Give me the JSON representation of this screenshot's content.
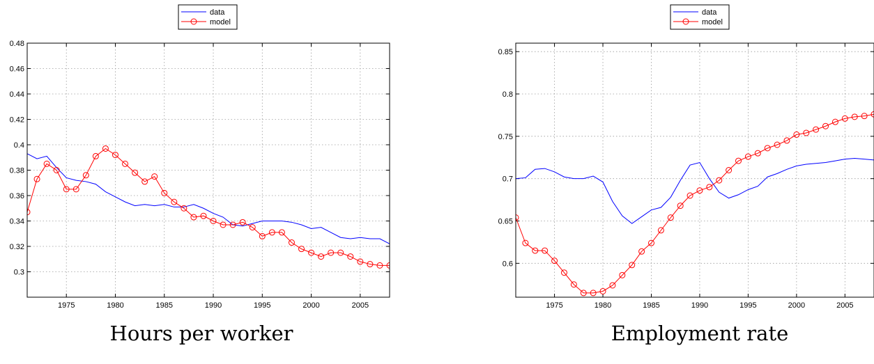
{
  "chart_data": [
    {
      "type": "line",
      "title": "",
      "caption": "Hours per worker",
      "xlabel": "",
      "ylabel": "",
      "xlim": [
        1971,
        2008
      ],
      "ylim": [
        0.28,
        0.48
      ],
      "xticks": [
        1975,
        1980,
        1985,
        1990,
        1995,
        2000,
        2005
      ],
      "xtick_labels": [
        "1975",
        "1980",
        "1985",
        "1990",
        "1995",
        "2000",
        "2005"
      ],
      "yticks": [
        0.3,
        0.32,
        0.34,
        0.36,
        0.38,
        0.4,
        0.42,
        0.44,
        0.46,
        0.48
      ],
      "ytick_labels": [
        "0.3",
        "0.32",
        "0.34",
        "0.36",
        "0.38",
        "0.4",
        "0.42",
        "0.44",
        "0.46",
        "0.48"
      ],
      "grid": true,
      "legend": "top-center",
      "x": [
        1971,
        1972,
        1973,
        1974,
        1975,
        1976,
        1977,
        1978,
        1979,
        1980,
        1981,
        1982,
        1983,
        1984,
        1985,
        1986,
        1987,
        1988,
        1989,
        1990,
        1991,
        1992,
        1993,
        1994,
        1995,
        1996,
        1997,
        1998,
        1999,
        2000,
        2001,
        2002,
        2003,
        2004,
        2005,
        2006,
        2007,
        2008
      ],
      "series": [
        {
          "name": "data",
          "color": "#0000ff",
          "marker": "none",
          "values": [
            0.393,
            0.389,
            0.391,
            0.382,
            0.374,
            0.372,
            0.371,
            0.369,
            0.363,
            0.359,
            0.355,
            0.352,
            0.353,
            0.352,
            0.353,
            0.351,
            0.351,
            0.353,
            0.35,
            0.346,
            0.343,
            0.337,
            0.336,
            0.338,
            0.34,
            0.34,
            0.34,
            0.339,
            0.337,
            0.334,
            0.335,
            0.331,
            0.327,
            0.326,
            0.327,
            0.326,
            0.326,
            0.322
          ]
        },
        {
          "name": "model",
          "color": "#ff0000",
          "marker": "circle",
          "values": [
            0.347,
            0.373,
            0.385,
            0.38,
            0.365,
            0.365,
            0.376,
            0.391,
            0.397,
            0.392,
            0.385,
            0.378,
            0.371,
            0.375,
            0.362,
            0.355,
            0.35,
            0.343,
            0.344,
            0.34,
            0.337,
            0.337,
            0.339,
            0.335,
            0.328,
            0.331,
            0.331,
            0.323,
            0.318,
            0.315,
            0.312,
            0.315,
            0.315,
            0.312,
            0.308,
            0.306,
            0.305,
            0.305
          ]
        }
      ]
    },
    {
      "type": "line",
      "title": "",
      "caption": "Employment rate",
      "xlabel": "",
      "ylabel": "",
      "xlim": [
        1971,
        2008
      ],
      "ylim": [
        0.56,
        0.86
      ],
      "xticks": [
        1975,
        1980,
        1985,
        1990,
        1995,
        2000,
        2005
      ],
      "xtick_labels": [
        "1975",
        "1980",
        "1985",
        "1990",
        "1995",
        "2000",
        "2005"
      ],
      "yticks": [
        0.6,
        0.65,
        0.7,
        0.75,
        0.8,
        0.85
      ],
      "ytick_labels": [
        "0.6",
        "0.65",
        "0.7",
        "0.75",
        "0.8",
        "0.85"
      ],
      "grid": true,
      "legend": "top-center",
      "x": [
        1971,
        1972,
        1973,
        1974,
        1975,
        1976,
        1977,
        1978,
        1979,
        1980,
        1981,
        1982,
        1983,
        1984,
        1985,
        1986,
        1987,
        1988,
        1989,
        1990,
        1991,
        1992,
        1993,
        1994,
        1995,
        1996,
        1997,
        1998,
        1999,
        2000,
        2001,
        2002,
        2003,
        2004,
        2005,
        2006,
        2007,
        2008
      ],
      "series": [
        {
          "name": "data",
          "color": "#0000ff",
          "marker": "none",
          "values": [
            0.7,
            0.701,
            0.711,
            0.712,
            0.708,
            0.702,
            0.7,
            0.7,
            0.703,
            0.696,
            0.673,
            0.656,
            0.647,
            0.655,
            0.663,
            0.666,
            0.678,
            0.698,
            0.716,
            0.719,
            0.7,
            0.684,
            0.677,
            0.681,
            0.687,
            0.691,
            0.702,
            0.706,
            0.711,
            0.715,
            0.717,
            0.718,
            0.719,
            0.721,
            0.723,
            0.724,
            0.723,
            0.722
          ]
        },
        {
          "name": "model",
          "color": "#ff0000",
          "marker": "circle",
          "values": [
            0.654,
            0.624,
            0.615,
            0.615,
            0.603,
            0.589,
            0.575,
            0.565,
            0.565,
            0.567,
            0.574,
            0.586,
            0.598,
            0.614,
            0.624,
            0.639,
            0.654,
            0.668,
            0.68,
            0.686,
            0.69,
            0.698,
            0.71,
            0.721,
            0.726,
            0.73,
            0.736,
            0.74,
            0.745,
            0.752,
            0.754,
            0.758,
            0.762,
            0.767,
            0.771,
            0.773,
            0.774,
            0.776
          ]
        }
      ]
    }
  ]
}
